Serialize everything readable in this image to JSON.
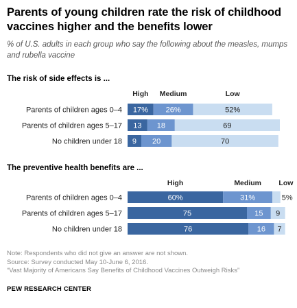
{
  "title": "Parents of young children rate the risk of childhood vaccines higher and the benefits lower",
  "subtitle": "% of U.S. adults in each group who say the following about the measles, mumps and rubella vaccine",
  "colors": {
    "high": "#3a66a0",
    "medium": "#6d95cf",
    "low": "#c9ddf1"
  },
  "chart_data": [
    {
      "type": "bar",
      "stacked": true,
      "orientation": "horizontal",
      "title": "The risk of side effects is ...",
      "categories": [
        "Parents of children ages 0–4",
        "Parents of children ages 5–17",
        "No children under 18"
      ],
      "series": [
        {
          "name": "High",
          "values": [
            17,
            13,
            9
          ],
          "labels": [
            "17%",
            "13",
            "9"
          ]
        },
        {
          "name": "Medium",
          "values": [
            26,
            18,
            20
          ],
          "labels": [
            "26%",
            "18",
            "20"
          ]
        },
        {
          "name": "Low",
          "values": [
            52,
            69,
            70
          ],
          "labels": [
            "52%",
            "69",
            "70"
          ]
        }
      ],
      "xlim": [
        0,
        100
      ]
    },
    {
      "type": "bar",
      "stacked": true,
      "orientation": "horizontal",
      "title": "The preventive health benefits are ...",
      "categories": [
        "Parents of children ages 0–4",
        "Parents of children ages 5–17",
        "No children under 18"
      ],
      "series": [
        {
          "name": "High",
          "values": [
            60,
            75,
            76
          ],
          "labels": [
            "60%",
            "75",
            "76"
          ]
        },
        {
          "name": "Medium",
          "values": [
            31,
            15,
            16
          ],
          "labels": [
            "31%",
            "15",
            "16"
          ]
        },
        {
          "name": "Low",
          "values": [
            5,
            9,
            7
          ],
          "labels": [
            "5%",
            "9",
            "7"
          ]
        }
      ],
      "xlim": [
        0,
        100
      ]
    }
  ],
  "footer": {
    "note": "Note: Respondents who did not give an answer are not shown.",
    "source": "Source: Survey conducted May 10-June 6, 2016.",
    "report": "“Vast Majority of Americans Say Benefits of Childhood Vaccines Outweigh Risks”",
    "brand": "PEW RESEARCH CENTER"
  }
}
